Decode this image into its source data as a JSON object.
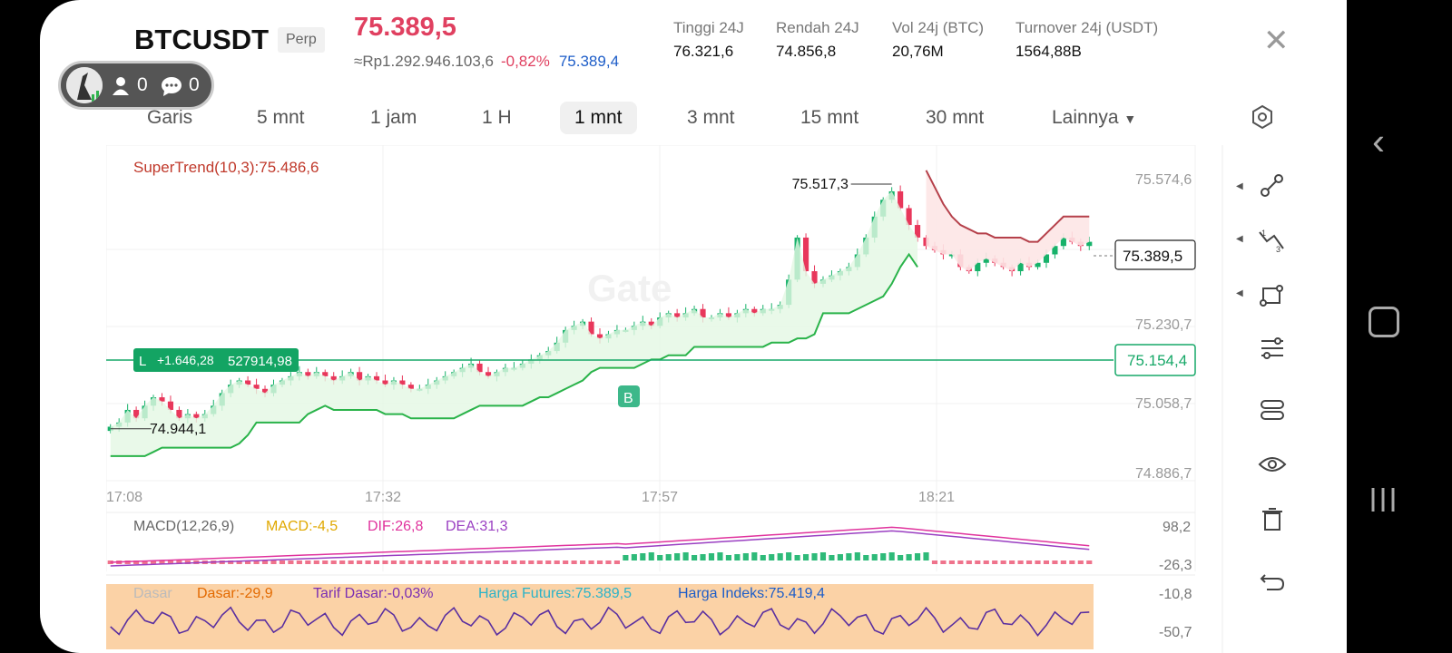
{
  "header": {
    "symbol": "BTCUSDT",
    "type_badge": "Perp",
    "last_price": "75.389,5",
    "price_idr": "≈Rp1.292.946.103,6",
    "change_pct": "-0,82%",
    "mark_price": "75.389,4",
    "stats": [
      {
        "label": "Tinggi 24J",
        "value": "76.321,6"
      },
      {
        "label": "Rendah 24J",
        "value": "74.856,8"
      },
      {
        "label": "Vol 24j (BTC)",
        "value": "20,76M"
      },
      {
        "label": "Turnover 24j (USDT)",
        "value": "1564,88B"
      }
    ]
  },
  "live_pill": {
    "viewers": "0",
    "comments": "0"
  },
  "timeframes": [
    "Garis",
    "5 mnt",
    "1 jam",
    "1 H",
    "1 mnt",
    "3 mnt",
    "15 mnt",
    "30 mnt",
    "Lainnya"
  ],
  "active_timeframe": "1 mnt",
  "chart": {
    "supertrend_label": "SuperTrend(10,3):75.486,6",
    "high_marker": "75.517,3",
    "low_marker": "74.944,1",
    "current_price_tag": "75.389,5",
    "position_line_price": "75.154,4",
    "position": {
      "side": "L",
      "pnl": "+1.646,28",
      "value": "527914,98"
    },
    "buy_marker": "B",
    "watermark": "Gate",
    "y_ticks": [
      "75.574,6",
      "75.230,7",
      "75.058,7",
      "74.886,7"
    ],
    "x_ticks": [
      "17:08",
      "17:32",
      "17:57",
      "18:21"
    ],
    "colors": {
      "up": "#17b26a",
      "down": "#e8375b",
      "supertrend": "#2ab34a",
      "supertrend_down": "#b5404a"
    }
  },
  "chart_data": {
    "type": "candlestick",
    "ylim": [
      74.8,
      75.62
    ],
    "closes": [
      74.95,
      74.96,
      74.99,
      74.97,
      75.0,
      75.02,
      75.01,
      74.99,
      74.97,
      74.98,
      74.97,
      74.98,
      75.0,
      75.03,
      75.05,
      75.06,
      75.05,
      75.04,
      75.03,
      75.05,
      75.06,
      75.07,
      75.08,
      75.07,
      75.08,
      75.07,
      75.06,
      75.07,
      75.08,
      75.06,
      75.07,
      75.06,
      75.05,
      75.06,
      75.05,
      75.04,
      75.04,
      75.05,
      75.06,
      75.07,
      75.08,
      75.09,
      75.1,
      75.08,
      75.07,
      75.08,
      75.09,
      75.09,
      75.1,
      75.11,
      75.12,
      75.13,
      75.15,
      75.18,
      75.19,
      75.2,
      75.17,
      75.16,
      75.17,
      75.18,
      75.18,
      75.19,
      75.2,
      75.19,
      75.21,
      75.22,
      75.21,
      75.22,
      75.23,
      75.21,
      75.21,
      75.22,
      75.21,
      75.22,
      75.23,
      75.22,
      75.23,
      75.23,
      75.24,
      75.3,
      75.4,
      75.32,
      75.29,
      75.3,
      75.31,
      75.32,
      75.33,
      75.36,
      75.4,
      75.45,
      75.49,
      75.51,
      75.47,
      75.43,
      75.4,
      75.38,
      75.37,
      75.36,
      75.36,
      75.33,
      75.32,
      75.34,
      75.35,
      75.34,
      75.33,
      75.32,
      75.34,
      75.33,
      75.34,
      75.36,
      75.38,
      75.4,
      75.39,
      75.38,
      75.39
    ],
    "supertrend": {
      "up_from": [
        0,
        113
      ],
      "down_from": [
        95,
        113
      ]
    },
    "macd": {
      "MACD": "-4,5",
      "DIF": "26,8",
      "DEA": "31,3",
      "y_ticks": [
        "98,2",
        "-26,3"
      ],
      "name": "MACD(12,26,9)"
    },
    "funding": {
      "labels": [
        "Dasar",
        "Dasar:-29,9",
        "Tarif Dasar:-0,03%",
        "Harga Futures:75.389,5",
        "Harga Indeks:75.419,4"
      ],
      "y_ticks": [
        "-10,8",
        "-50,7"
      ]
    }
  }
}
